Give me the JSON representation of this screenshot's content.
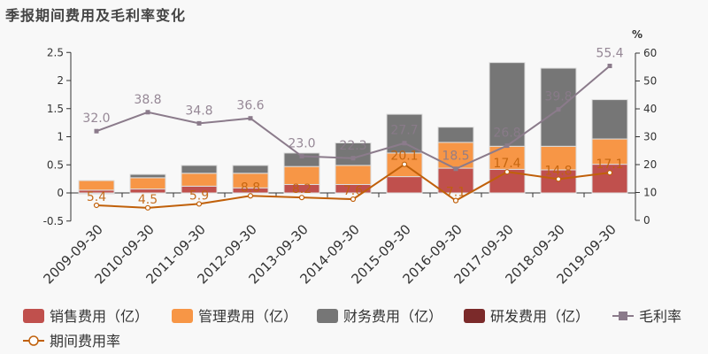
{
  "title": "季报期间费用及毛利率变化",
  "chart_data": {
    "type": "bar",
    "stacked": true,
    "categories": [
      "2009-09-30",
      "2010-09-30",
      "2011-09-30",
      "2012-09-30",
      "2013-09-30",
      "2014-09-30",
      "2015-09-30",
      "2016-09-30",
      "2017-09-30",
      "2018-09-30",
      "2019-09-30"
    ],
    "series": [
      {
        "name": "销售费用（亿）",
        "type": "bar",
        "axis": "left",
        "color": "#c0504d",
        "values": [
          0.05,
          0.07,
          0.12,
          0.09,
          0.15,
          0.15,
          0.29,
          0.44,
          0.42,
          0.41,
          0.51
        ]
      },
      {
        "name": "管理费用（亿）",
        "type": "bar",
        "axis": "left",
        "color": "#f79646",
        "values": [
          0.17,
          0.2,
          0.23,
          0.26,
          0.32,
          0.34,
          0.42,
          0.46,
          0.41,
          0.42,
          0.45
        ]
      },
      {
        "name": "财务费用（亿）",
        "type": "bar",
        "axis": "left",
        "color": "#767676",
        "values": [
          -0.01,
          0.06,
          0.14,
          0.14,
          0.24,
          0.4,
          0.69,
          0.27,
          1.49,
          1.39,
          0.7
        ]
      },
      {
        "name": "研发费用（亿）",
        "type": "bar",
        "axis": "left",
        "color": "#7b2a2a",
        "values": [
          0,
          0,
          0,
          0,
          0,
          0,
          0,
          0,
          0,
          0,
          0
        ]
      },
      {
        "name": "毛利率",
        "type": "line",
        "axis": "right",
        "color": "#8b7b8b",
        "values": [
          32.0,
          38.8,
          34.8,
          36.6,
          23.0,
          22.3,
          27.7,
          18.5,
          26.8,
          39.8,
          55.4
        ],
        "labels": [
          "32.0",
          "38.8",
          "34.8",
          "36.6",
          "23.0",
          "22.3",
          "27.7",
          "18.5",
          "26.8",
          "39.8",
          "55.4"
        ]
      },
      {
        "name": "期间费用率",
        "type": "line",
        "axis": "right",
        "color": "#c0600a",
        "values": [
          5.4,
          4.5,
          5.9,
          8.8,
          8.2,
          7.6,
          20.1,
          7.1,
          17.4,
          14.8,
          17.1
        ],
        "labels": [
          "5.4",
          "4.5",
          "5.9",
          "8.8",
          "8.2",
          "7.6",
          "20.1",
          "7.1",
          "17.4",
          "14.8",
          "17.1"
        ]
      }
    ],
    "y_left": {
      "range": [
        -0.5,
        2.5
      ],
      "ticks": [
        "-0.5",
        "0",
        "0.5",
        "1",
        "1.5",
        "2",
        "2.5"
      ]
    },
    "y_right": {
      "label": "%",
      "range": [
        0,
        60
      ],
      "ticks": [
        "0",
        "10",
        "20",
        "30",
        "40",
        "50",
        "60"
      ]
    },
    "grid": false,
    "legend_position": "bottom"
  }
}
